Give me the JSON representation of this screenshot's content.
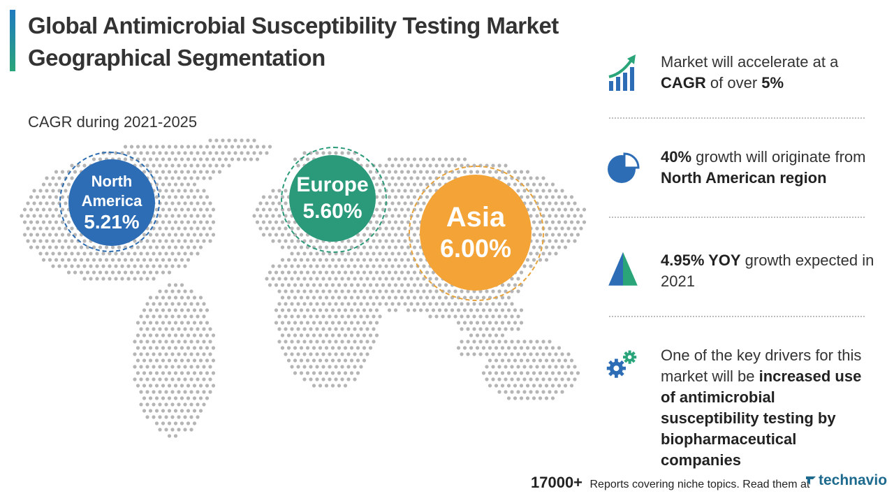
{
  "title": {
    "line1": "Global Antimicrobial Susceptibility Testing Market",
    "line2": "Geographical Segmentation"
  },
  "subtitle": "CAGR during 2021-2025",
  "regions": {
    "north_america": {
      "name_line1": "North",
      "name_line2": "America",
      "value": "5.21%",
      "color": "#2c6db6"
    },
    "europe": {
      "name": "Europe",
      "value": "5.60%",
      "color": "#2a9a7a"
    },
    "asia": {
      "name": "Asia",
      "value": "6.00%",
      "color": "#f4a336"
    }
  },
  "highlights": [
    {
      "icon": "growth-chart-icon",
      "pre": "Market will accelerate at a",
      "bold1": "CAGR",
      "mid": " of over ",
      "bold2": "5%"
    },
    {
      "icon": "pie-chart-icon",
      "bold1": "40%",
      "mid": " growth will originate from ",
      "bold2": "North American region"
    },
    {
      "icon": "pyramid-icon",
      "bold1": "4.95% YOY",
      "mid": " growth expected in 2021"
    },
    {
      "icon": "gears-icon",
      "pre": "One of the key drivers for this market will be ",
      "bold1": "increased use of antimicrobial susceptibility testing by biopharmaceutical companies"
    }
  ],
  "footer": {
    "count": "17000+",
    "text": "Reports covering niche topics. Read them at"
  },
  "brand": "technavio"
}
